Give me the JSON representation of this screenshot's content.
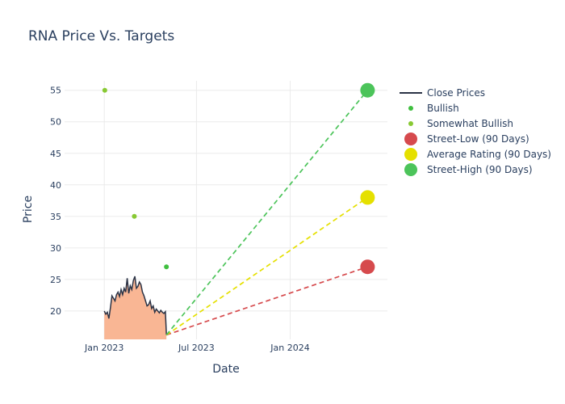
{
  "chart_data": {
    "type": "line",
    "title": "RNA Price Vs. Targets",
    "xlabel": "Date",
    "ylabel": "Price",
    "x_range": [
      "2022-10-15",
      "2024-07-10"
    ],
    "ylim": [
      15.5,
      56.5
    ],
    "y_ticks": [
      20,
      25,
      30,
      35,
      40,
      45,
      50,
      55
    ],
    "x_ticks": [
      {
        "date": "2023-01-01",
        "label": "Jan 2023"
      },
      {
        "date": "2023-07-01",
        "label": "Jul 2023"
      },
      {
        "date": "2024-01-01",
        "label": "Jan 2024"
      }
    ],
    "grid": true,
    "legend_position": "top-right",
    "colors": {
      "close": "#2b3346",
      "fill": "#f9b694",
      "bullish": "#3fbf3f",
      "somewhat_bullish": "#88c933",
      "low": "#d64a4d",
      "avg": "#e5e000",
      "high": "#4cc45a"
    },
    "series": [
      {
        "name": "Close Prices",
        "x": [
          "2023-01-01",
          "2023-01-04",
          "2023-01-07",
          "2023-01-10",
          "2023-01-13",
          "2023-01-16",
          "2023-01-19",
          "2023-01-22",
          "2023-01-25",
          "2023-01-28",
          "2023-01-31",
          "2023-02-03",
          "2023-02-06",
          "2023-02-09",
          "2023-02-12",
          "2023-02-15",
          "2023-02-18",
          "2023-02-21",
          "2023-02-24",
          "2023-02-27",
          "2023-03-02",
          "2023-03-05",
          "2023-03-08",
          "2023-03-11",
          "2023-03-14",
          "2023-03-17",
          "2023-03-20",
          "2023-03-23",
          "2023-03-26",
          "2023-03-29",
          "2023-04-01",
          "2023-04-04",
          "2023-04-07",
          "2023-04-10",
          "2023-04-13",
          "2023-04-16",
          "2023-04-19",
          "2023-04-22",
          "2023-04-25",
          "2023-04-28",
          "2023-05-01",
          "2023-05-03"
        ],
        "y": [
          20.0,
          19.5,
          19.8,
          18.8,
          20.5,
          22.4,
          22.0,
          21.6,
          22.6,
          23.0,
          22.3,
          23.4,
          22.6,
          23.6,
          23.0,
          25.2,
          22.8,
          24.0,
          23.4,
          24.8,
          25.5,
          23.6,
          23.9,
          24.6,
          24.2,
          23.0,
          22.4,
          21.6,
          20.8,
          21.0,
          21.6,
          20.4,
          20.8,
          19.8,
          20.3,
          20.0,
          19.7,
          20.1,
          19.8,
          19.6,
          19.9,
          16.2
        ]
      },
      {
        "name": "Bullish",
        "points": [
          {
            "x": "2023-05-03",
            "y": 27
          }
        ]
      },
      {
        "name": "Somewhat Bullish",
        "points": [
          {
            "x": "2023-01-02",
            "y": 55
          },
          {
            "x": "2023-03-01",
            "y": 35
          }
        ]
      },
      {
        "name": "Street-Low (90 Days)",
        "line": [
          {
            "x": "2023-05-03",
            "y": 16.2
          },
          {
            "x": "2024-06-01",
            "y": 27
          }
        ],
        "marker": {
          "x": "2024-06-01",
          "y": 27
        }
      },
      {
        "name": "Average Rating (90 Days)",
        "line": [
          {
            "x": "2023-05-03",
            "y": 16.2
          },
          {
            "x": "2024-06-01",
            "y": 38
          }
        ],
        "marker": {
          "x": "2024-06-01",
          "y": 38
        }
      },
      {
        "name": "Street-High (90 Days)",
        "line": [
          {
            "x": "2023-05-03",
            "y": 16.2
          },
          {
            "x": "2024-06-01",
            "y": 55
          }
        ],
        "marker": {
          "x": "2024-06-01",
          "y": 55
        }
      }
    ]
  }
}
